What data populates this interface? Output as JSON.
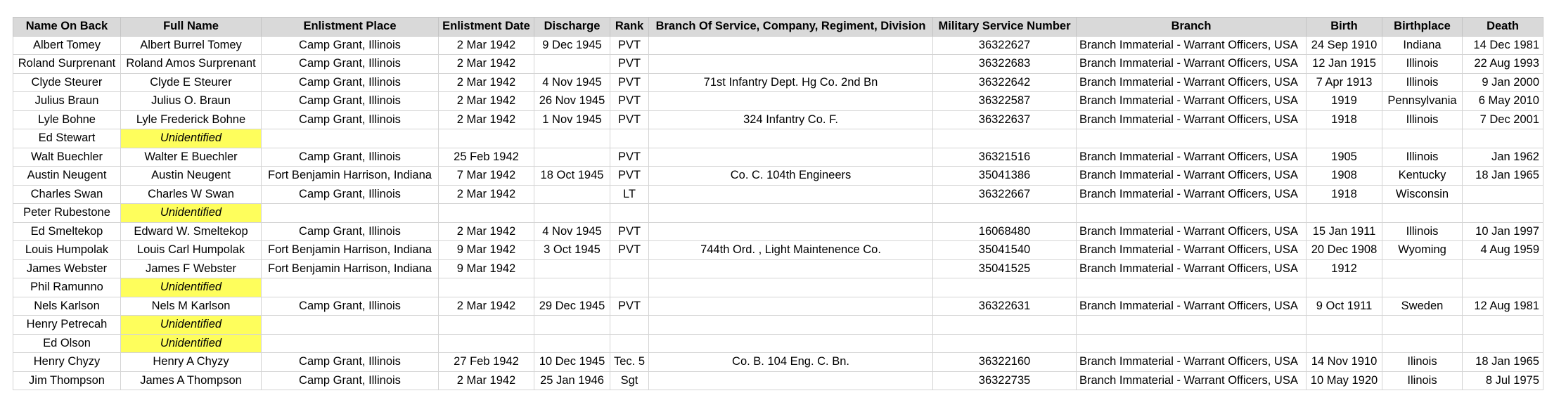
{
  "columns": [
    "Name On Back",
    "Full Name",
    "Enlistment Place",
    "Enlistment Date",
    "Discharge",
    "Rank",
    "Branch Of Service, Company, Regiment, Division",
    "Military Service Number",
    "Branch",
    "Birth",
    "Birthplace",
    "Death"
  ],
  "rows": [
    [
      "Albert  Tomey",
      "Albert Burrel Tomey",
      "Camp Grant, Illinois",
      "2 Mar 1942",
      "9 Dec 1945",
      "PVT",
      "",
      "36322627",
      "Branch Immaterial - Warrant Officers, USA",
      "24 Sep 1910",
      "Indiana",
      "14 Dec 1981"
    ],
    [
      "Roland Surprenant",
      "Roland Amos Surprenant",
      "Camp Grant, Illinois",
      "2 Mar 1942",
      "",
      "PVT",
      "",
      "36322683",
      "Branch Immaterial - Warrant Officers, USA",
      "12 Jan 1915",
      "Illinois",
      "22 Aug 1993"
    ],
    [
      "Clyde Steurer",
      "Clyde E Steurer",
      "Camp Grant, Illinois",
      "2 Mar 1942",
      "4 Nov 1945",
      "PVT",
      "71st Infantry Dept. Hg Co. 2nd Bn",
      "36322642",
      "Branch Immaterial - Warrant Officers, USA",
      "7 Apr 1913",
      "Illinois",
      "9 Jan 2000"
    ],
    [
      "Julius Braun",
      "Julius O. Braun",
      "Camp Grant, Illinois",
      "2 Mar 1942",
      "26 Nov 1945",
      "PVT",
      "",
      "36322587",
      "Branch Immaterial - Warrant Officers, USA",
      "1919",
      "Pennsylvania",
      "6 May 2010"
    ],
    [
      "Lyle Bohne",
      "Lyle Frederick Bohne",
      "Camp Grant, Illinois",
      "2 Mar 1942",
      "1 Nov 1945",
      "PVT",
      "324 Infantry  Co. F.",
      "36322637",
      "Branch Immaterial - Warrant Officers, USA",
      "1918",
      "Illinois",
      "7 Dec 2001"
    ],
    [
      "Ed Stewart",
      "Unidentified",
      "",
      "",
      "",
      "",
      "",
      "",
      "",
      "",
      "",
      ""
    ],
    [
      "Walt Buechler",
      "Walter E Buechler",
      "Camp Grant, Illinois",
      "25 Feb 1942",
      "",
      "PVT",
      "",
      "36321516",
      "Branch Immaterial - Warrant Officers, USA",
      "1905",
      "Illinois",
      "Jan 1962"
    ],
    [
      "Austin Neugent",
      "Austin Neugent",
      "Fort Benjamin Harrison, Indiana",
      "7 Mar 1942",
      "18 Oct 1945",
      "PVT",
      "Co. C.  104th Engineers",
      "35041386",
      "Branch Immaterial - Warrant Officers, USA",
      "1908",
      "Kentucky",
      "18 Jan 1965"
    ],
    [
      "Charles Swan",
      "Charles W Swan",
      "Camp Grant, Illinois",
      "2 Mar 1942",
      "",
      "LT",
      "",
      "36322667",
      "Branch Immaterial - Warrant Officers, USA",
      "1918",
      "Wisconsin",
      ""
    ],
    [
      "Peter Rubestone",
      "Unidentified",
      "",
      "",
      "",
      "",
      "",
      "",
      "",
      "",
      "",
      ""
    ],
    [
      "Ed Smeltekop",
      "Edward W. Smeltekop",
      "Camp Grant, Illinois",
      "2 Mar 1942",
      "4 Nov 1945",
      "PVT",
      "",
      "16068480",
      "Branch Immaterial - Warrant Officers, USA",
      "15 Jan 1911",
      "Illinois",
      "10 Jan 1997"
    ],
    [
      "Louis Humpolak",
      "Louis Carl Humpolak",
      "Fort Benjamin Harrison, Indiana",
      "9 Mar 1942",
      "3 Oct 1945",
      "PVT",
      "744th Ord. , Light Maintenence Co.",
      "35041540",
      "Branch Immaterial - Warrant Officers, USA",
      "20 Dec 1908",
      "Wyoming",
      "4 Aug 1959"
    ],
    [
      "James  Webster",
      "James F Webster",
      "Fort Benjamin Harrison, Indiana",
      "9 Mar 1942",
      "",
      "",
      "",
      "35041525",
      "Branch Immaterial - Warrant Officers, USA",
      "1912",
      "",
      ""
    ],
    [
      "Phil Ramunno",
      "Unidentified",
      "",
      "",
      "",
      "",
      "",
      "",
      "",
      "",
      "",
      ""
    ],
    [
      "Nels Karlson",
      "Nels M Karlson",
      "Camp Grant, Illinois",
      "2 Mar 1942",
      "29 Dec 1945",
      "PVT",
      "",
      "36322631",
      "Branch Immaterial - Warrant Officers, USA",
      "9 Oct 1911",
      "Sweden",
      "12 Aug 1981"
    ],
    [
      "Henry Petrecah",
      "Unidentified",
      "",
      "",
      "",
      "",
      "",
      "",
      "",
      "",
      "",
      ""
    ],
    [
      "Ed Olson",
      "Unidentified",
      "",
      "",
      "",
      "",
      "",
      "",
      "",
      "",
      "",
      ""
    ],
    [
      "Henry Chyzy",
      "Henry A Chyzy",
      "Camp Grant, Illinois",
      "27 Feb 1942",
      "10 Dec 1945",
      "Tec. 5",
      "Co. B.  104 Eng. C.  Bn.",
      "36322160",
      "Branch Immaterial - Warrant Officers, USA",
      "14 Nov 1910",
      "Ilinois",
      "18 Jan 1965"
    ],
    [
      "Jim Thompson",
      "James A Thompson",
      "Camp Grant, Illinois",
      "2 Mar 1942",
      "25 Jan 1946",
      "Sgt",
      "",
      "36322735",
      "Branch Immaterial - Warrant Officers, USA",
      "10 May 1920",
      "Ilinois",
      "8 Jul 1975"
    ]
  ],
  "highlight_value": "Unidentified",
  "highlight_color": "#fefe5c",
  "header_color": "#d9d9d9"
}
